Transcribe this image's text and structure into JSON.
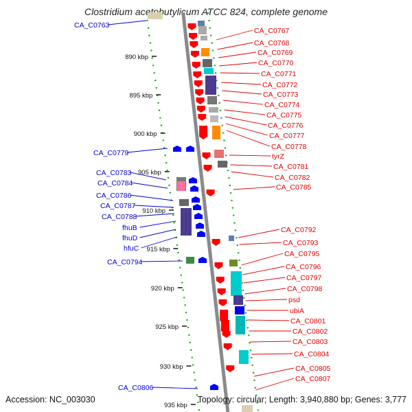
{
  "title": "Clostridium acetobutylicum ATCC 824, complete genome",
  "footer": {
    "accession": "Accession: NC_003030",
    "summary": "Topology: circular; Length: 3,940,880 bp; Genes: 3,777"
  },
  "ticks": [
    "890 kbp",
    "895 kbp",
    "900 kbp",
    "905 kbp",
    "910 kbp",
    "915 kbp",
    "920 kbp",
    "925 kbp",
    "930 kbp",
    "935 kbp"
  ],
  "left_labels": [
    "CA_C0763",
    "CA_C0779",
    "CA_C0783",
    "CA_C0784",
    "CA_C0786",
    "CA_C0787",
    "CA_C0788",
    "fhuB",
    "fhuD",
    "hfuC",
    "CA_C0794",
    "CA_C0806"
  ],
  "right_labels": [
    "CA_C0767",
    "CA_C0768",
    "CA_C0769",
    "CA_C0770",
    "CA_C0771",
    "CA_C0772",
    "CA_C0773",
    "CA_C0774",
    "CA_C0775",
    "CA_C0776",
    "CA_C0777",
    "CA_C0778",
    "tyrZ",
    "CA_C0781",
    "CA_C0782",
    "CA_C0785",
    "CA_C0792",
    "CA_C0793",
    "CA_C0795",
    "CA_C0796",
    "CA_C0797",
    "CA_C0798",
    "psd",
    "ubiA",
    "CA_C0801",
    "CA_C0802",
    "CA_C0803",
    "CA_C0804",
    "CA_C0805",
    "CA_C0807"
  ],
  "colors": {
    "forward_gene": "#ff0000",
    "reverse_gene": "#0000ff",
    "left_label": "#0000cc",
    "right_label": "#e00000",
    "backbone": "#8a8a8a",
    "tick_dots": "#22aa22"
  }
}
